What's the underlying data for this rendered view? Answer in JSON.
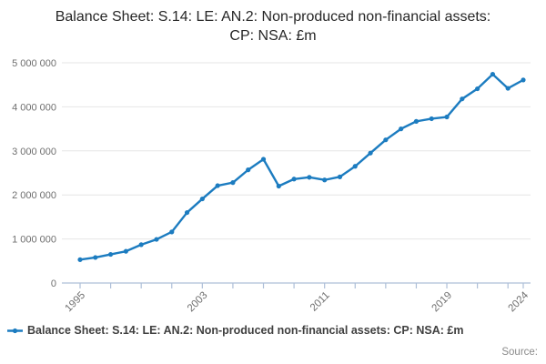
{
  "title": "Balance Sheet: S.14: LE: AN.2: Non-produced non-financial assets: CP: NSA: £m",
  "legend": {
    "label": "Balance Sheet: S.14: LE: AN.2: Non-produced non-financial assets: CP: NSA: £m"
  },
  "source_label": "Source:",
  "colors": {
    "line": "#1c7cc0",
    "grid": "#e6e6e6",
    "axis": "#aebfd8",
    "tick_text": "#6f6f6f",
    "title_text": "#262626",
    "legend_text": "#404040"
  },
  "chart_data": {
    "type": "line",
    "title": "Balance Sheet: S.14: LE: AN.2: Non-produced non-financial assets: CP: NSA: £m",
    "xlabel": "",
    "ylabel": "",
    "ylim": [
      0,
      5000000
    ],
    "grid": "horizontal",
    "legend_position": "bottom",
    "x": [
      1995,
      1996,
      1997,
      1998,
      1999,
      2000,
      2001,
      2002,
      2003,
      2004,
      2005,
      2006,
      2007,
      2008,
      2009,
      2010,
      2011,
      2012,
      2013,
      2014,
      2015,
      2016,
      2017,
      2018,
      2019,
      2020,
      2021,
      2022,
      2023,
      2024
    ],
    "values": [
      530000,
      580000,
      650000,
      720000,
      870000,
      990000,
      1160000,
      1600000,
      1910000,
      2210000,
      2280000,
      2570000,
      2810000,
      2200000,
      2360000,
      2400000,
      2340000,
      2410000,
      2650000,
      2950000,
      3250000,
      3500000,
      3670000,
      3730000,
      3770000,
      4180000,
      4410000,
      4740000,
      4420000,
      4610000
    ],
    "y_ticks": [
      {
        "value": 0,
        "label": "0"
      },
      {
        "value": 1000000,
        "label": "1 000 000"
      },
      {
        "value": 2000000,
        "label": "2 000 000"
      },
      {
        "value": 3000000,
        "label": "3 000 000"
      },
      {
        "value": 4000000,
        "label": "4 000 000"
      },
      {
        "value": 5000000,
        "label": "5 000 000"
      }
    ],
    "x_minor_ticks": [
      1995,
      1997,
      1999,
      2001,
      2003,
      2005,
      2007,
      2009,
      2011,
      2013,
      2015,
      2017,
      2019,
      2021,
      2023,
      2024
    ],
    "x_labeled_ticks": [
      1995,
      2003,
      2011,
      2019,
      2024
    ]
  }
}
